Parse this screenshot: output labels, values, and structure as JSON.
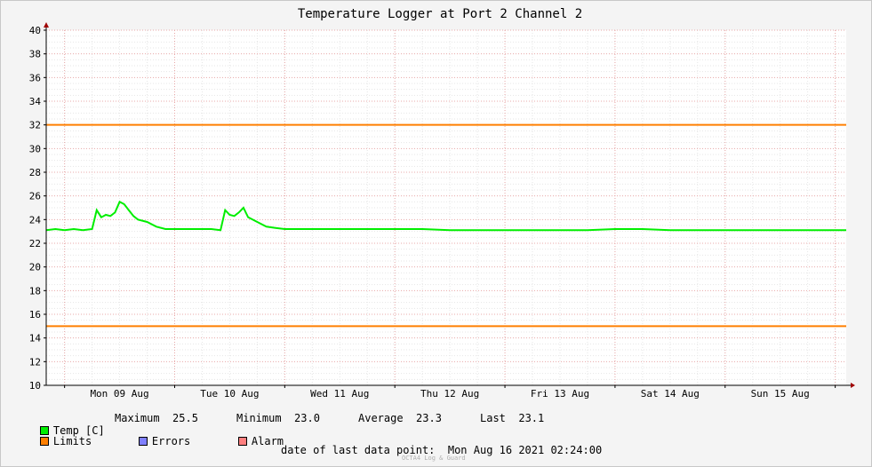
{
  "chart_data": {
    "type": "line",
    "title": "Temperature Logger at Port 2 Channel 2",
    "xlabel": "",
    "ylabel": "",
    "x_range": [
      "2021-08-08T20:00",
      "2021-08-16T02:24"
    ],
    "x_tick_labels": [
      "Mon 09 Aug",
      "Tue 10 Aug",
      "Wed 11 Aug",
      "Thu 12 Aug",
      "Fri 13 Aug",
      "Sat 14 Aug",
      "Sun 15 Aug"
    ],
    "x_ticks": [
      "2021-08-09T12:00",
      "2021-08-10T12:00",
      "2021-08-11T12:00",
      "2021-08-12T12:00",
      "2021-08-13T12:00",
      "2021-08-14T12:00",
      "2021-08-15T12:00"
    ],
    "y_ticks": [
      10,
      12,
      14,
      16,
      18,
      20,
      22,
      24,
      26,
      28,
      30,
      32,
      34,
      36,
      38,
      40
    ],
    "ylim": [
      10,
      40
    ],
    "grid": true,
    "limits": [
      32,
      15
    ],
    "series": [
      {
        "name": "Temp [C]",
        "color": "#00ee00",
        "points": [
          [
            "2021-08-08T20:00",
            23.1
          ],
          [
            "2021-08-08T22:00",
            23.2
          ],
          [
            "2021-08-09T00:00",
            23.1
          ],
          [
            "2021-08-09T02:00",
            23.2
          ],
          [
            "2021-08-09T04:00",
            23.1
          ],
          [
            "2021-08-09T06:00",
            23.2
          ],
          [
            "2021-08-09T07:00",
            24.8
          ],
          [
            "2021-08-09T08:00",
            24.2
          ],
          [
            "2021-08-09T09:00",
            24.4
          ],
          [
            "2021-08-09T10:00",
            24.3
          ],
          [
            "2021-08-09T11:00",
            24.6
          ],
          [
            "2021-08-09T12:00",
            25.5
          ],
          [
            "2021-08-09T13:00",
            25.3
          ],
          [
            "2021-08-09T14:00",
            24.8
          ],
          [
            "2021-08-09T15:00",
            24.3
          ],
          [
            "2021-08-09T16:00",
            24.0
          ],
          [
            "2021-08-09T18:00",
            23.8
          ],
          [
            "2021-08-09T20:00",
            23.4
          ],
          [
            "2021-08-09T22:00",
            23.2
          ],
          [
            "2021-08-10T00:00",
            23.2
          ],
          [
            "2021-08-10T04:00",
            23.2
          ],
          [
            "2021-08-10T08:00",
            23.2
          ],
          [
            "2021-08-10T10:00",
            23.1
          ],
          [
            "2021-08-10T11:00",
            24.8
          ],
          [
            "2021-08-10T12:00",
            24.4
          ],
          [
            "2021-08-10T13:00",
            24.3
          ],
          [
            "2021-08-10T14:00",
            24.6
          ],
          [
            "2021-08-10T15:00",
            25.0
          ],
          [
            "2021-08-10T16:00",
            24.2
          ],
          [
            "2021-08-10T18:00",
            23.8
          ],
          [
            "2021-08-10T20:00",
            23.4
          ],
          [
            "2021-08-10T22:00",
            23.3
          ],
          [
            "2021-08-11T00:00",
            23.2
          ],
          [
            "2021-08-11T06:00",
            23.2
          ],
          [
            "2021-08-11T12:00",
            23.2
          ],
          [
            "2021-08-11T18:00",
            23.2
          ],
          [
            "2021-08-12T00:00",
            23.2
          ],
          [
            "2021-08-12T06:00",
            23.2
          ],
          [
            "2021-08-12T12:00",
            23.1
          ],
          [
            "2021-08-12T18:00",
            23.1
          ],
          [
            "2021-08-13T00:00",
            23.1
          ],
          [
            "2021-08-13T06:00",
            23.1
          ],
          [
            "2021-08-13T12:00",
            23.1
          ],
          [
            "2021-08-13T18:00",
            23.1
          ],
          [
            "2021-08-14T00:00",
            23.2
          ],
          [
            "2021-08-14T06:00",
            23.2
          ],
          [
            "2021-08-14T12:00",
            23.1
          ],
          [
            "2021-08-14T18:00",
            23.1
          ],
          [
            "2021-08-15T00:00",
            23.1
          ],
          [
            "2021-08-15T06:00",
            23.1
          ],
          [
            "2021-08-15T12:00",
            23.1
          ],
          [
            "2021-08-15T18:00",
            23.1
          ],
          [
            "2021-08-16T00:00",
            23.1
          ],
          [
            "2021-08-16T02:24",
            23.1
          ]
        ]
      }
    ],
    "stats": {
      "maximum_label": "Maximum",
      "maximum": "25.5",
      "minimum_label": "Minimum",
      "minimum": "23.0",
      "average_label": "Average",
      "average": "23.3",
      "last_label": "Last",
      "last": "23.1"
    }
  },
  "legend": {
    "temp_label": "Temp [C]",
    "limits_label": "Limits",
    "errors_label": "Errors",
    "alarm_label": "Alarm",
    "colors": {
      "temp": "#00ee00",
      "limits": "#ff7f00",
      "errors": "#7f7fff",
      "alarm": "#ff7f7f"
    }
  },
  "footer": {
    "last_point_label": "date of last data point:",
    "last_point_value": "Mon Aug 16 2021 02:24:00",
    "watermark": "OCTA4 Log & Guard"
  }
}
